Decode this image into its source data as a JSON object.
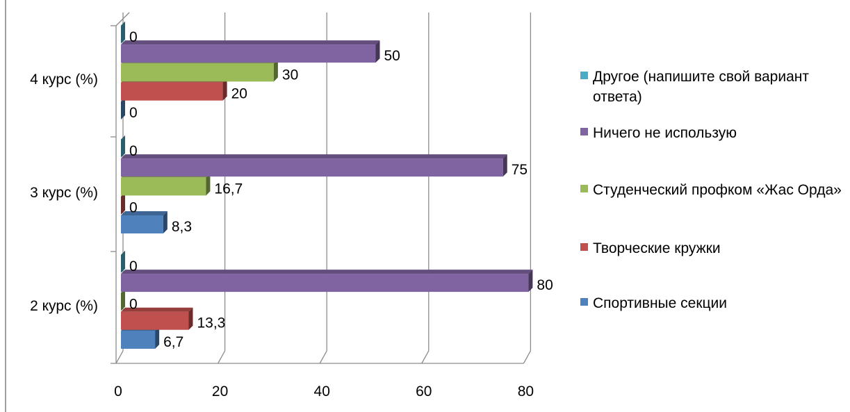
{
  "chart_data": {
    "type": "bar",
    "orientation": "horizontal",
    "categories": [
      "2 курс (%)",
      "3 курс (%)",
      "4 курс (%)"
    ],
    "series": [
      {
        "name": "Спортивные секции",
        "color": "#4F81BD",
        "values": [
          6.7,
          8.3,
          0
        ],
        "labels": [
          "6,7",
          "8,3",
          "0"
        ]
      },
      {
        "name": "Творческие кружки",
        "color": "#C0504D",
        "values": [
          13.3,
          0,
          20
        ],
        "labels": [
          "13,3",
          "0",
          "20"
        ]
      },
      {
        "name": "Студенческий профком «Жас Орда»",
        "color": "#9BBB59",
        "values": [
          0,
          16.7,
          30
        ],
        "labels": [
          "0",
          "16,7",
          "30"
        ]
      },
      {
        "name": "Ничего не использую",
        "color": "#8064A2",
        "values": [
          80,
          75,
          50
        ],
        "labels": [
          "80",
          "75",
          "50"
        ]
      },
      {
        "name": "Другое (напишите свой вариант ответа)",
        "color": "#4BACC6",
        "values": [
          0,
          0,
          0
        ],
        "labels": [
          "0",
          "0",
          "0"
        ]
      }
    ],
    "xlim": [
      0,
      80
    ],
    "xticks": [
      "0",
      "20",
      "40",
      "60",
      "80"
    ],
    "grid": true,
    "legend": "right",
    "title": "",
    "xlabel": "",
    "ylabel": ""
  }
}
